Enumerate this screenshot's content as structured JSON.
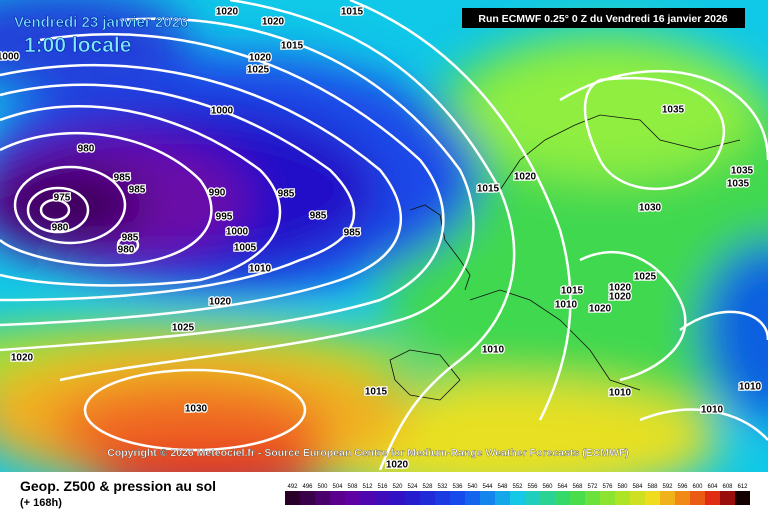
{
  "header": {
    "valid_date": "Vendredi 23 janvier 2026",
    "local_time": "1:00 locale",
    "run": "Run ECMWF 0.25° 0 Z du Vendredi 16 janvier 2026"
  },
  "copyright": "Copyright © 2026 Meteociel.fr - Source European Centre for Medium-Range Weather Forecasts (ECMWF)",
  "legend": {
    "title": "Geop. Z500 & pression au sol",
    "lead": "(+ 168h)",
    "scale": [
      492,
      496,
      500,
      504,
      508,
      512,
      516,
      520,
      524,
      528,
      532,
      536,
      540,
      544,
      548,
      552,
      556,
      560,
      564,
      568,
      572,
      576,
      580,
      584,
      588,
      592,
      596,
      600,
      604,
      608,
      612
    ]
  },
  "isobar_labels": [
    "1015",
    "1020",
    "1020",
    "1015",
    "1020",
    "1025",
    "1000",
    "1000",
    "980",
    "985",
    "985",
    "975",
    "980",
    "985",
    "980",
    "990",
    "995",
    "1000",
    "1005",
    "1010",
    "985",
    "985",
    "985",
    "1015",
    "1020",
    "1030",
    "1035",
    "1035",
    "1035",
    "1025",
    "1020",
    "1020",
    "1015",
    "1010",
    "1020",
    "1020",
    "1025",
    "1020",
    "1010",
    "1015",
    "1010",
    "1030",
    "1020",
    "1010",
    "1010"
  ]
}
